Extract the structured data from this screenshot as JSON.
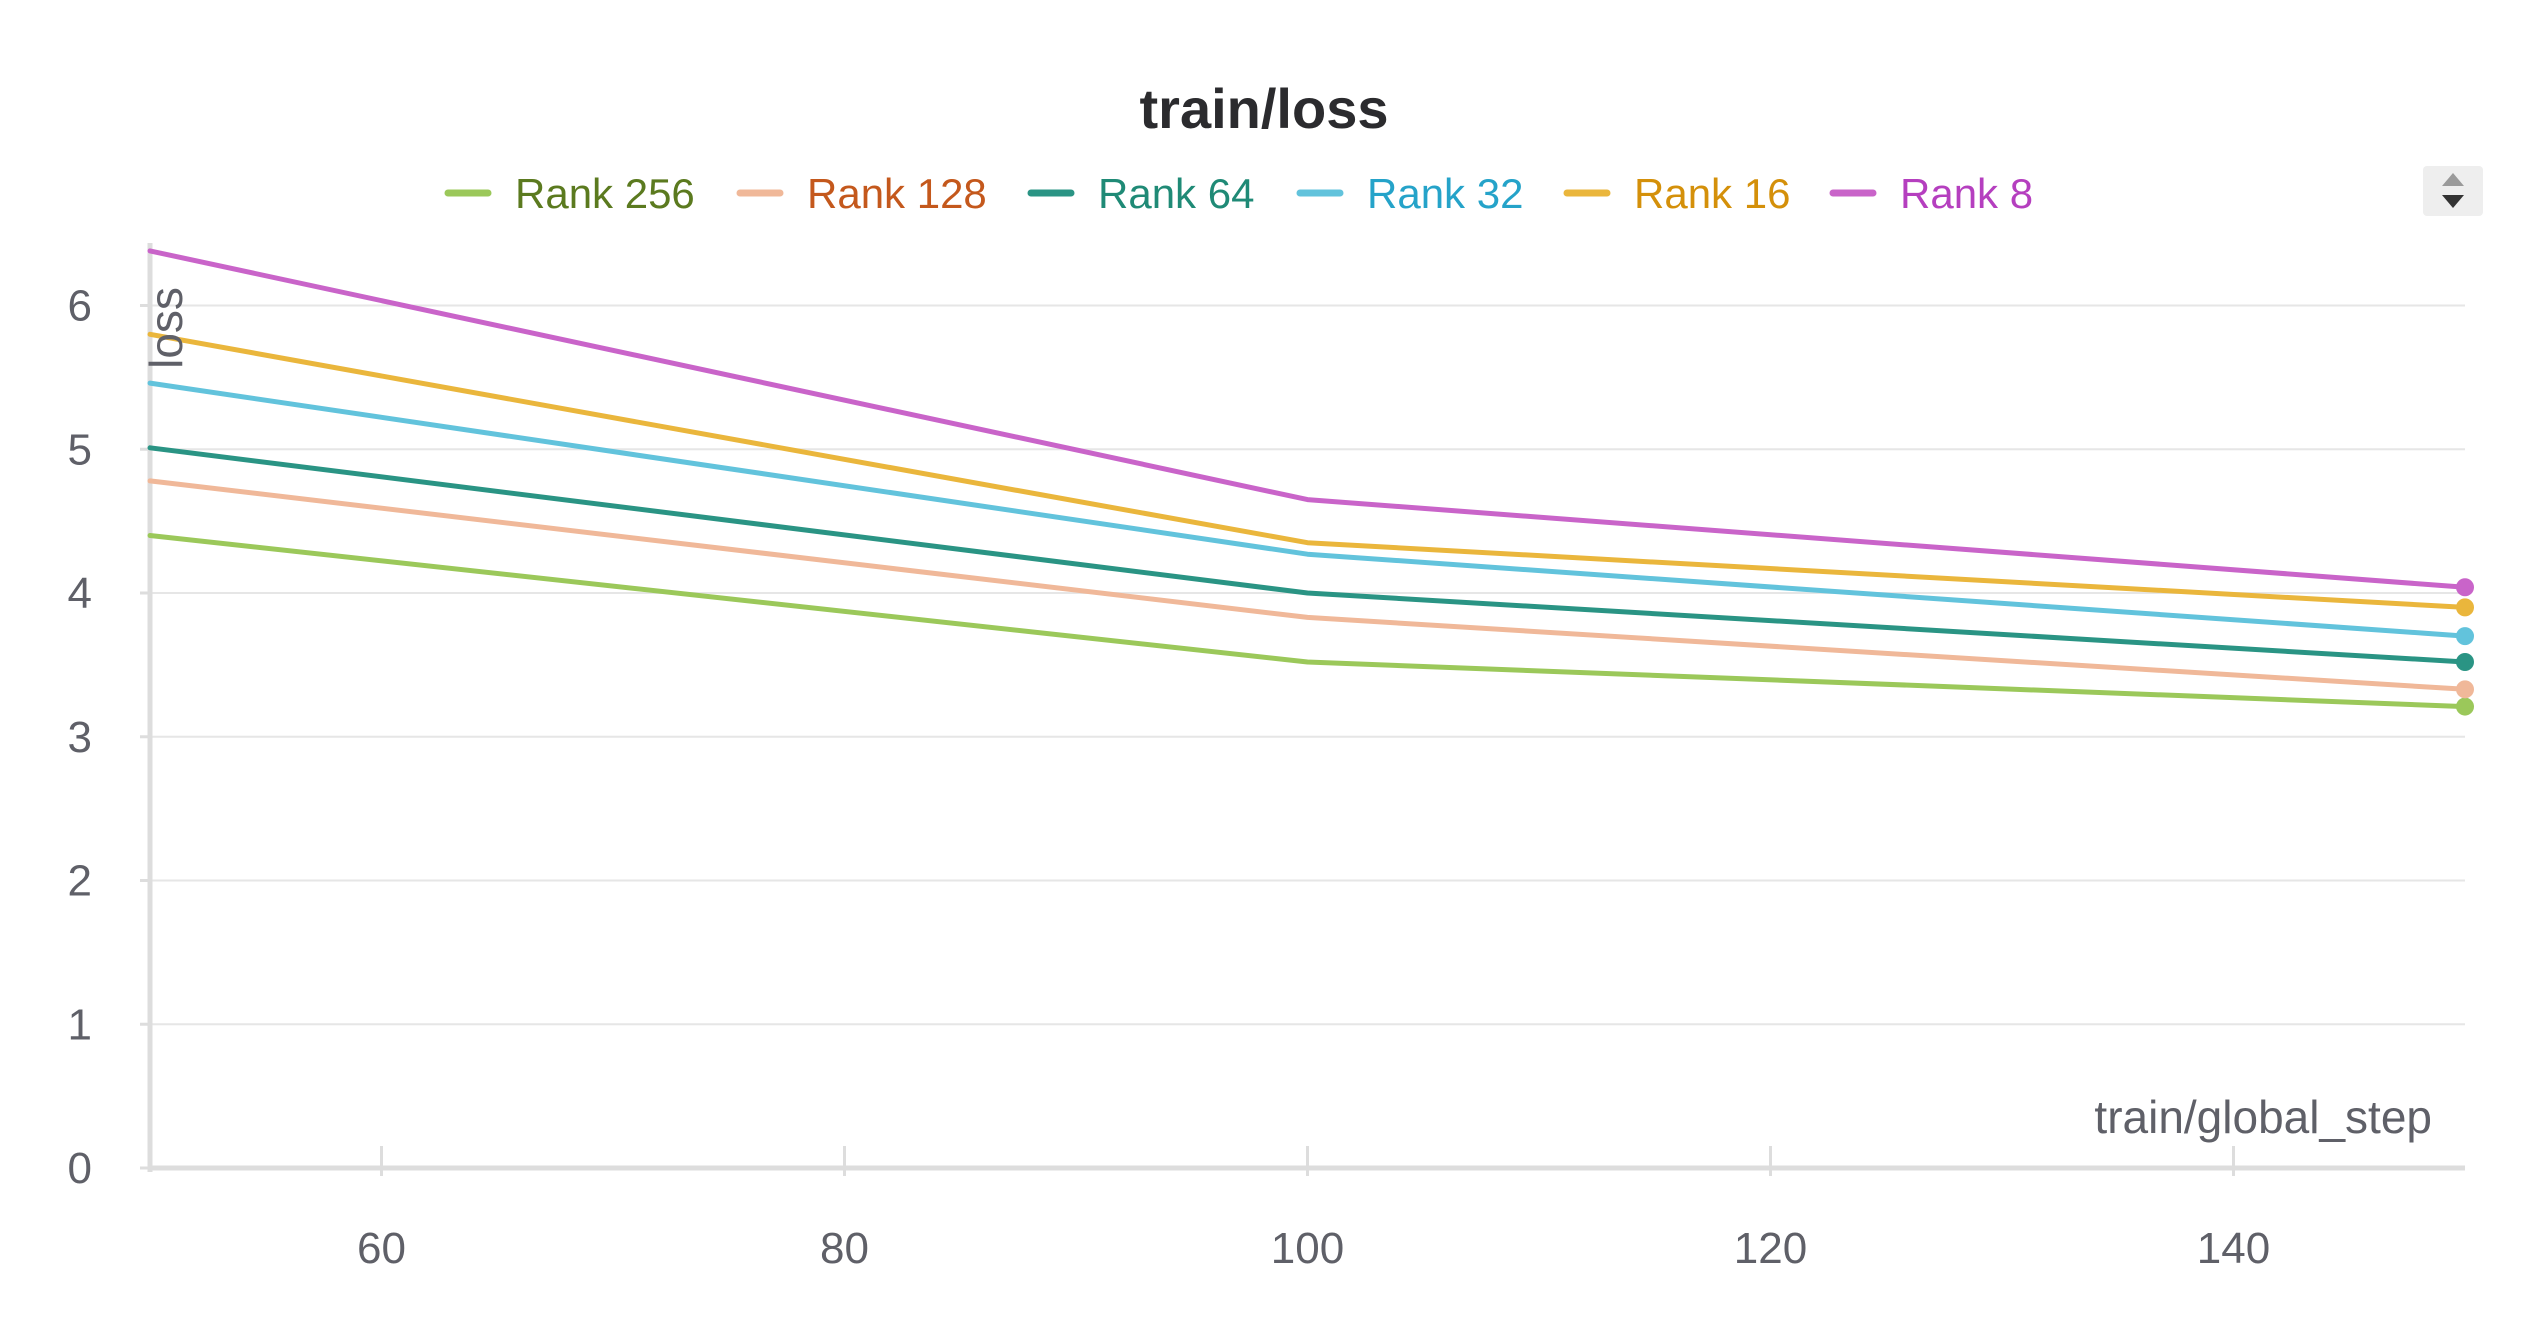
{
  "chart_data": {
    "type": "line",
    "title": "train/loss",
    "xlabel": "train/global_step",
    "ylabel": "loss",
    "x": [
      50,
      100,
      150
    ],
    "xlim": [
      50,
      150
    ],
    "ylim": [
      0,
      6.4
    ],
    "xticks": [
      60,
      80,
      100,
      120,
      140
    ],
    "yticks": [
      0,
      1,
      2,
      3,
      4,
      5,
      6
    ],
    "grid": true,
    "legend_position": "top",
    "series": [
      {
        "name": "Rank 256",
        "color": "#9bc85a",
        "label_color": "#5b7a1f",
        "values": [
          4.4,
          3.52,
          3.21
        ]
      },
      {
        "name": "Rank 128",
        "color": "#f0b899",
        "label_color": "#c4581c",
        "values": [
          4.78,
          3.83,
          3.33
        ]
      },
      {
        "name": "Rank 64",
        "color": "#2a9484",
        "label_color": "#1f8a76",
        "values": [
          5.01,
          4.0,
          3.52
        ]
      },
      {
        "name": "Rank 32",
        "color": "#62c3dc",
        "label_color": "#25a3c9",
        "values": [
          5.46,
          4.27,
          3.7
        ]
      },
      {
        "name": "Rank 16",
        "color": "#eab63c",
        "label_color": "#d4900a",
        "values": [
          5.8,
          4.35,
          3.9
        ]
      },
      {
        "name": "Rank 8",
        "color": "#c964c9",
        "label_color": "#b53fbf",
        "values": [
          6.38,
          4.65,
          4.04
        ]
      }
    ]
  }
}
